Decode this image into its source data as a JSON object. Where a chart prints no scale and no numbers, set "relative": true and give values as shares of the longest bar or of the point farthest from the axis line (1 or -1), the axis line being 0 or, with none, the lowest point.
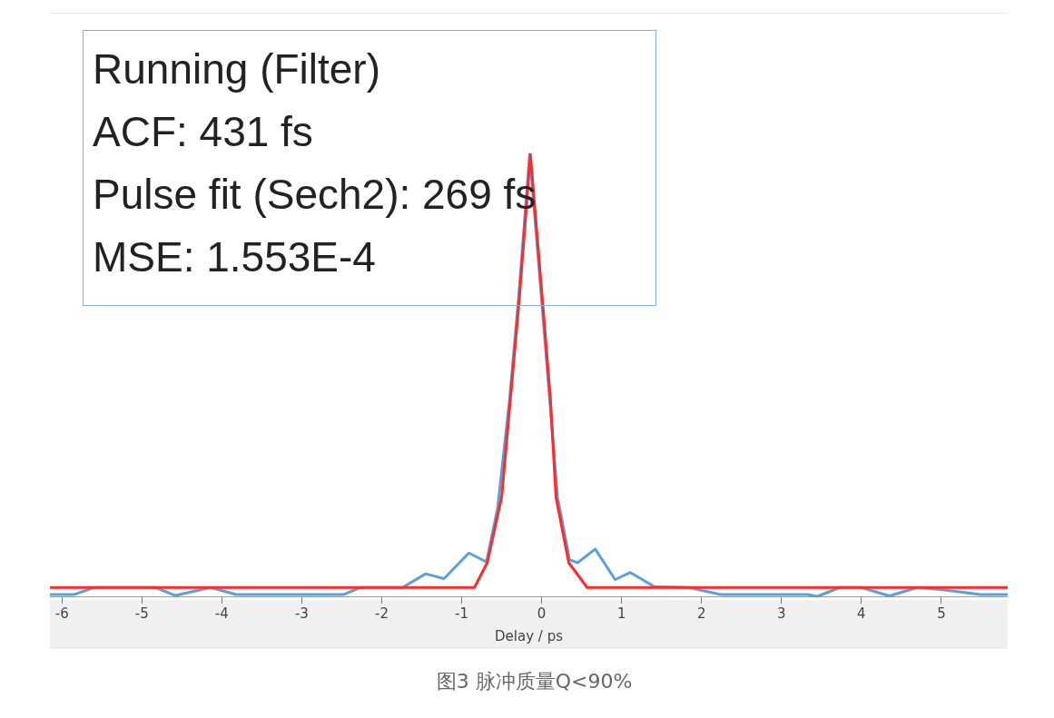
{
  "chart_data": {
    "type": "line",
    "relative": true,
    "xlabel": "Delay / ps",
    "xlim": [
      -6.15,
      5.83
    ],
    "xticks": [
      -6,
      -5,
      -4,
      -3,
      -2,
      -1,
      0,
      1,
      2,
      3,
      4,
      5
    ],
    "grid": false,
    "legend": false,
    "marker": "none",
    "line_style": "solid",
    "annotations": [
      "Running (Filter)",
      "ACF: 431 fs",
      "Pulse fit (Sech2): 269 fs",
      "MSE: 1.553E-4",
      "图3 脉冲质量Q<90%"
    ],
    "series": [
      {
        "color": "#ff2a2a",
        "x": [
          -6.15,
          -1.0,
          -0.84,
          -0.68,
          -0.5,
          -0.39,
          -0.28,
          -0.14,
          0.01,
          0.11,
          0.18,
          0.34,
          0.57,
          5.83
        ],
        "values": [
          0.02,
          0.02,
          0.02,
          0.076,
          0.224,
          0.447,
          0.671,
          1.0,
          0.671,
          0.447,
          0.224,
          0.076,
          0.02,
          0.02
        ]
      },
      {
        "color": "#5aa0dc",
        "x": [
          -6.15,
          -5.85,
          -5.6,
          -4.83,
          -4.58,
          -4.14,
          -3.82,
          -2.76,
          -2.48,
          -2.27,
          -1.74,
          -1.45,
          -1.22,
          -0.91,
          -0.69,
          -0.55,
          -0.4,
          -0.29,
          -0.15,
          0.0,
          0.1,
          0.2,
          0.35,
          0.45,
          0.67,
          0.92,
          1.11,
          1.41,
          1.84,
          2.24,
          3.33,
          3.45,
          3.73,
          4.0,
          4.35,
          4.7,
          5.02,
          5.49,
          5.83
        ],
        "values": [
          0.004,
          0.004,
          0.02,
          0.02,
          0.002,
          0.02,
          0.004,
          0.004,
          0.004,
          0.02,
          0.02,
          0.051,
          0.04,
          0.098,
          0.078,
          0.2,
          0.447,
          0.671,
          1.0,
          0.671,
          0.447,
          0.224,
          0.083,
          0.076,
          0.107,
          0.038,
          0.054,
          0.022,
          0.02,
          0.004,
          0.004,
          0.0,
          0.02,
          0.02,
          0.001,
          0.02,
          0.015,
          0.004,
          0.004
        ]
      }
    ]
  }
}
